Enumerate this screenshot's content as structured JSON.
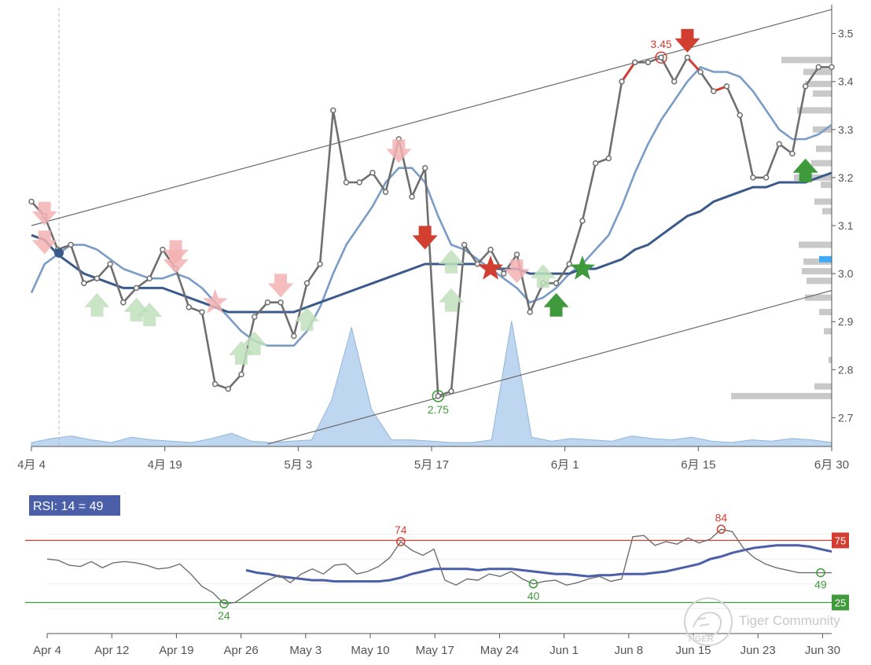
{
  "chart_data": [
    {
      "type": "line",
      "title": "",
      "x_ticks": [
        "4月 4",
        "4月 19",
        "5月 3",
        "5月 17",
        "6月 1",
        "6月 15",
        "6月 30"
      ],
      "y_ticks": [
        "2.7",
        "2.8",
        "2.9",
        "3.0",
        "3.1",
        "3.2",
        "3.3",
        "3.4",
        "3.5"
      ],
      "ylim": [
        2.64,
        3.56
      ],
      "grid": false,
      "series": [
        {
          "role": "price",
          "color": "#6f6f6f",
          "values": [
            3.15,
            3.12,
            3.05,
            3.06,
            2.98,
            2.99,
            3.02,
            2.94,
            2.97,
            2.99,
            3.05,
            3.01,
            2.93,
            2.92,
            2.77,
            2.76,
            2.79,
            2.91,
            2.94,
            2.94,
            2.87,
            2.98,
            3.02,
            3.34,
            3.19,
            3.19,
            3.21,
            3.17,
            3.28,
            3.16,
            3.22,
            2.745,
            2.755,
            3.06,
            3.02,
            3.05,
            3.0,
            3.04,
            2.92,
            2.98,
            2.98,
            3.02,
            3.11,
            3.23,
            3.24,
            3.4,
            3.44,
            3.44,
            3.45,
            3.4,
            3.45,
            3.42,
            3.38,
            3.39,
            3.33,
            3.2,
            3.2,
            3.27,
            3.25,
            3.39,
            3.43,
            3.43
          ]
        },
        {
          "role": "moving-average-fast",
          "color": "#7a9cc6",
          "values": [
            2.96,
            3.02,
            3.04,
            3.06,
            3.06,
            3.05,
            3.03,
            3.01,
            3.0,
            2.99,
            2.99,
            3.0,
            2.99,
            2.97,
            2.94,
            2.91,
            2.88,
            2.86,
            2.85,
            2.85,
            2.85,
            2.88,
            2.93,
            3.0,
            3.06,
            3.1,
            3.14,
            3.19,
            3.22,
            3.22,
            3.19,
            3.12,
            3.06,
            3.05,
            3.03,
            3.01,
            2.99,
            2.97,
            2.94,
            2.95,
            2.97,
            3.0,
            3.02,
            3.05,
            3.08,
            3.14,
            3.21,
            3.27,
            3.32,
            3.36,
            3.4,
            3.43,
            3.42,
            3.42,
            3.41,
            3.38,
            3.34,
            3.3,
            3.28,
            3.28,
            3.29,
            3.31
          ]
        },
        {
          "role": "moving-average-slow",
          "color": "#3a5a8c",
          "values": [
            3.08,
            3.07,
            3.04,
            3.02,
            3.0,
            2.99,
            2.98,
            2.97,
            2.97,
            2.97,
            2.97,
            2.96,
            2.95,
            2.94,
            2.93,
            2.92,
            2.92,
            2.92,
            2.92,
            2.92,
            2.92,
            2.93,
            2.94,
            2.95,
            2.96,
            2.97,
            2.98,
            2.99,
            3.0,
            3.01,
            3.02,
            3.02,
            3.02,
            3.02,
            3.02,
            3.01,
            3.01,
            3.01,
            3.0,
            3.0,
            3.0,
            3.0,
            3.01,
            3.01,
            3.02,
            3.03,
            3.05,
            3.06,
            3.08,
            3.1,
            3.12,
            3.13,
            3.15,
            3.16,
            3.17,
            3.18,
            3.18,
            3.19,
            3.19,
            3.19,
            3.2,
            3.21
          ]
        }
      ],
      "channel": {
        "upper": [
          3.1,
          3.55
        ],
        "lower": [
          2.645,
          2.965
        ]
      },
      "channel_lower_start_index": 18,
      "volume_profile": [
        0.03,
        0.06,
        0.08,
        0.05,
        0.03,
        0.07,
        0.05,
        0.04,
        0.03,
        0.06,
        0.1,
        0.04,
        0.03,
        0.04,
        0.05,
        0.35,
        0.9,
        0.28,
        0.05,
        0.05,
        0.04,
        0.03,
        0.03,
        0.05,
        0.95,
        0.07,
        0.04,
        0.06,
        0.05,
        0.04,
        0.08,
        0.06,
        0.05,
        0.07,
        0.04,
        0.03,
        0.05,
        0.04,
        0.06,
        0.05,
        0.03
      ],
      "volume_profile_range": [
        2.72,
        3.46
      ],
      "side_histogram": [
        {
          "price": 2.745,
          "width": 128
        },
        {
          "price": 2.765,
          "width": 22
        },
        {
          "price": 2.82,
          "width": 4
        },
        {
          "price": 2.88,
          "width": 10
        },
        {
          "price": 2.92,
          "width": 16
        },
        {
          "price": 2.95,
          "width": 34
        },
        {
          "price": 2.985,
          "width": 32
        },
        {
          "price": 3.005,
          "width": 38
        },
        {
          "price": 3.025,
          "width": 36
        },
        {
          "price": 3.06,
          "width": 42
        },
        {
          "price": 3.13,
          "width": 12
        },
        {
          "price": 3.15,
          "width": 22
        },
        {
          "price": 3.185,
          "width": 14
        },
        {
          "price": 3.2,
          "width": 48
        },
        {
          "price": 3.23,
          "width": 26
        },
        {
          "price": 3.26,
          "width": 20
        },
        {
          "price": 3.3,
          "width": 24
        },
        {
          "price": 3.34,
          "width": 44
        },
        {
          "price": 3.375,
          "width": 24
        },
        {
          "price": 3.395,
          "width": 34
        },
        {
          "price": 3.42,
          "width": 36
        },
        {
          "price": 3.445,
          "width": 64
        }
      ],
      "last_price_marker": 3.03,
      "annotations": [
        {
          "text": "3.45",
          "index": 48,
          "value": 3.45,
          "color": "#d23f31",
          "kind": "high"
        },
        {
          "text": "2.75",
          "index": 31,
          "value": 2.745,
          "color": "#3f9a3b",
          "kind": "low"
        }
      ],
      "signals": [
        {
          "kind": "arrow-down",
          "index": 30,
          "value": 3.07,
          "color": "#d23f31",
          "faded": false
        },
        {
          "kind": "star",
          "index": 35,
          "value": 3.01,
          "color": "#d23f31",
          "faded": false
        },
        {
          "kind": "arrow-up",
          "index": 40,
          "value": 2.94,
          "color": "#3f9a3b",
          "faded": false
        },
        {
          "kind": "star",
          "index": 42,
          "value": 3.01,
          "color": "#3f9a3b",
          "faded": false
        },
        {
          "kind": "arrow-down",
          "index": 50,
          "value": 3.48,
          "color": "#d23f31",
          "faded": false
        },
        {
          "kind": "arrow-up",
          "index": 59,
          "value": 3.22,
          "color": "#3f9a3b",
          "faded": false
        },
        {
          "kind": "arrow-down",
          "index": 1,
          "value": 3.12,
          "color": "#f3b2b2",
          "faded": true
        },
        {
          "kind": "arrow-down",
          "index": 1,
          "value": 3.06,
          "color": "#f3b2b2",
          "faded": true
        },
        {
          "kind": "arrow-down",
          "index": 11,
          "value": 3.04,
          "color": "#f3b2b2",
          "faded": true
        },
        {
          "kind": "arrow-down",
          "index": 11,
          "value": 3.02,
          "color": "#f3b2b2",
          "faded": true
        },
        {
          "kind": "star",
          "index": 14,
          "value": 2.94,
          "color": "#f3b2b2",
          "faded": true
        },
        {
          "kind": "arrow-down",
          "index": 19,
          "value": 2.97,
          "color": "#f3b2b2",
          "faded": true
        },
        {
          "kind": "arrow-down",
          "index": 28,
          "value": 3.25,
          "color": "#f3b2b2",
          "faded": true
        },
        {
          "kind": "arrow-down",
          "index": 37,
          "value": 3.0,
          "color": "#f3b2b2",
          "faded": true
        },
        {
          "kind": "arrow-up",
          "index": 5,
          "value": 2.94,
          "color": "#bfe0bc",
          "faded": true
        },
        {
          "kind": "arrow-up",
          "index": 8,
          "value": 2.93,
          "color": "#bfe0bc",
          "faded": true
        },
        {
          "kind": "arrow-up",
          "index": 9,
          "value": 2.92,
          "color": "#bfe0bc",
          "faded": true
        },
        {
          "kind": "arrow-up",
          "index": 16,
          "value": 2.84,
          "color": "#bfe0bc",
          "faded": true
        },
        {
          "kind": "arrow-up",
          "index": 17,
          "value": 2.86,
          "color": "#bfe0bc",
          "faded": true
        },
        {
          "kind": "arrow-up",
          "index": 21,
          "value": 2.91,
          "color": "#bfe0bc",
          "faded": true
        },
        {
          "kind": "arrow-up",
          "index": 32,
          "value": 3.03,
          "color": "#bfe0bc",
          "faded": true
        },
        {
          "kind": "arrow-up",
          "index": 32,
          "value": 2.95,
          "color": "#bfe0bc",
          "faded": true
        },
        {
          "kind": "arrow-up",
          "index": 39,
          "value": 3.0,
          "color": "#bfe0bc",
          "faded": true
        }
      ],
      "red_segment_indices": [
        45,
        50,
        52
      ]
    },
    {
      "type": "line",
      "title": "",
      "legend_label": "RSI: 14 = 49",
      "x_ticks": [
        "Apr 4",
        "Apr 12",
        "Apr 19",
        "Apr 26",
        "May 3",
        "May 10",
        "May 17",
        "May 24",
        "Jun 1",
        "Jun 8",
        "Jun 15",
        "Jun 23",
        "Jun 30"
      ],
      "ylim": [
        0,
        100
      ],
      "thresholds": [
        {
          "label": "75",
          "value": 75,
          "color": "#d23f31"
        },
        {
          "label": "25",
          "value": 25,
          "color": "#3f9a3b"
        }
      ],
      "series": [
        {
          "role": "rsi",
          "color": "#6f6f6f",
          "values": [
            60,
            59,
            55,
            54,
            58,
            53,
            57,
            58,
            57,
            55,
            52,
            53,
            56,
            48,
            38,
            33,
            24,
            25,
            31,
            37,
            43,
            47,
            41,
            48,
            52,
            48,
            55,
            56,
            48,
            50,
            54,
            61,
            74,
            67,
            63,
            68,
            43,
            39,
            44,
            43,
            48,
            46,
            50,
            44,
            40,
            42,
            43,
            39,
            41,
            44,
            46,
            42,
            44,
            78,
            79,
            71,
            74,
            72,
            77,
            73,
            76,
            84,
            82,
            69,
            61,
            56,
            53,
            51,
            49,
            49,
            49,
            49
          ]
        },
        {
          "role": "rsi-average",
          "color": "#4a5fa8",
          "values": [
            null,
            null,
            null,
            null,
            null,
            null,
            null,
            null,
            null,
            null,
            null,
            null,
            null,
            null,
            null,
            null,
            null,
            null,
            51,
            49,
            48,
            46,
            45,
            44,
            43,
            43,
            42,
            42,
            42,
            42,
            42,
            43,
            45,
            48,
            50,
            52,
            52,
            52,
            52,
            51,
            52,
            52,
            52,
            51,
            50,
            49,
            48,
            48,
            47,
            46,
            47,
            47,
            48,
            48,
            48,
            49,
            50,
            52,
            54,
            56,
            60,
            62,
            65,
            67,
            69,
            70,
            71,
            71,
            71,
            70,
            68,
            66
          ]
        }
      ],
      "annotations": [
        {
          "text": "74",
          "index": 32,
          "value": 74,
          "color": "#d23f31"
        },
        {
          "text": "24",
          "index": 16,
          "value": 24,
          "color": "#3f9a3b"
        },
        {
          "text": "40",
          "index": 44,
          "value": 40,
          "color": "#3f9a3b"
        },
        {
          "text": "84",
          "index": 61,
          "value": 84,
          "color": "#d23f31"
        },
        {
          "text": "49",
          "index": 70,
          "value": 49,
          "color": "#3f9a3b"
        }
      ]
    }
  ],
  "watermark": {
    "text": "Tiger Community"
  }
}
